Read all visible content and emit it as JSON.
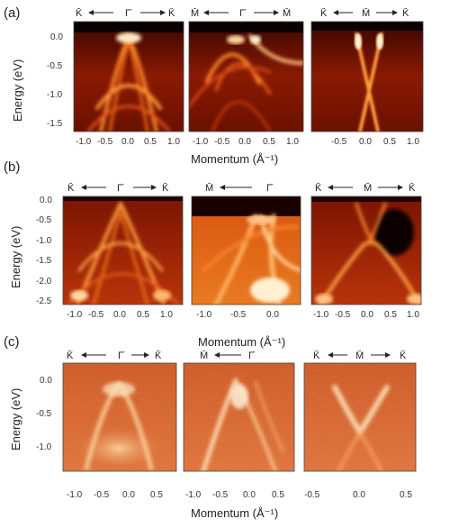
{
  "panel_labels": {
    "a": "(a)",
    "b": "(b)",
    "c": "(c)"
  },
  "axis_titles": {
    "energy": "Energy (eV)",
    "momentum": "Momentum (Å⁻¹)"
  },
  "rows": [
    {
      "id": "a",
      "energy_ticks": [
        "0.0",
        "-0.5",
        "-1.0",
        "-1.5"
      ],
      "panels": [
        {
          "dir": [
            "K̄",
            "Γ̄",
            "K̄"
          ],
          "k_ticks": [
            "-1.0",
            "-0.5",
            "0.0",
            "0.5",
            "1.0"
          ]
        },
        {
          "dir": [
            "M̄",
            "Γ̄",
            "M̄"
          ],
          "k_ticks": [
            "-1.0",
            "-0.5",
            "0.0",
            "0.5",
            "1.0"
          ]
        },
        {
          "dir": [
            "K̄",
            "M̄",
            "K̄"
          ],
          "k_ticks": [
            "-0.5",
            "0.0",
            "0.5",
            "1.0"
          ]
        }
      ]
    },
    {
      "id": "b",
      "energy_ticks": [
        "0.0",
        "-0.5",
        "-1.0",
        "-1.5",
        "-2.0",
        "-2.5"
      ],
      "panels": [
        {
          "dir": [
            "K̄",
            "Γ̄",
            "K̄"
          ],
          "k_ticks": [
            "-1.0",
            "-0.5",
            "0.0",
            "0.5",
            "1.0"
          ]
        },
        {
          "dir": [
            "M̄",
            "Γ̄"
          ],
          "k_ticks": [
            "-1.0",
            "-0.5",
            "0.0"
          ]
        },
        {
          "dir": [
            "K̄",
            "M̄",
            "K̄"
          ],
          "k_ticks": [
            "-1.0",
            "-0.5",
            "0.0",
            "0.5",
            "1.0"
          ]
        }
      ]
    },
    {
      "id": "c",
      "energy_ticks": [
        "0.0",
        "-0.5",
        "-1.0"
      ],
      "panels": [
        {
          "dir": [
            "K̄",
            "Γ̄",
            "K̄"
          ],
          "k_ticks": [
            "-1.0",
            "-0.5",
            "0.0",
            "0.5"
          ]
        },
        {
          "dir": [
            "M̄",
            "Γ̄"
          ],
          "k_ticks": [
            "-1.0",
            "-0.5",
            "0.0",
            "0.5"
          ]
        },
        {
          "dir": [
            "K̄",
            "M̄",
            "K̄"
          ],
          "k_ticks": [
            "-0.5",
            "0.0",
            "0.5"
          ]
        }
      ]
    }
  ]
}
